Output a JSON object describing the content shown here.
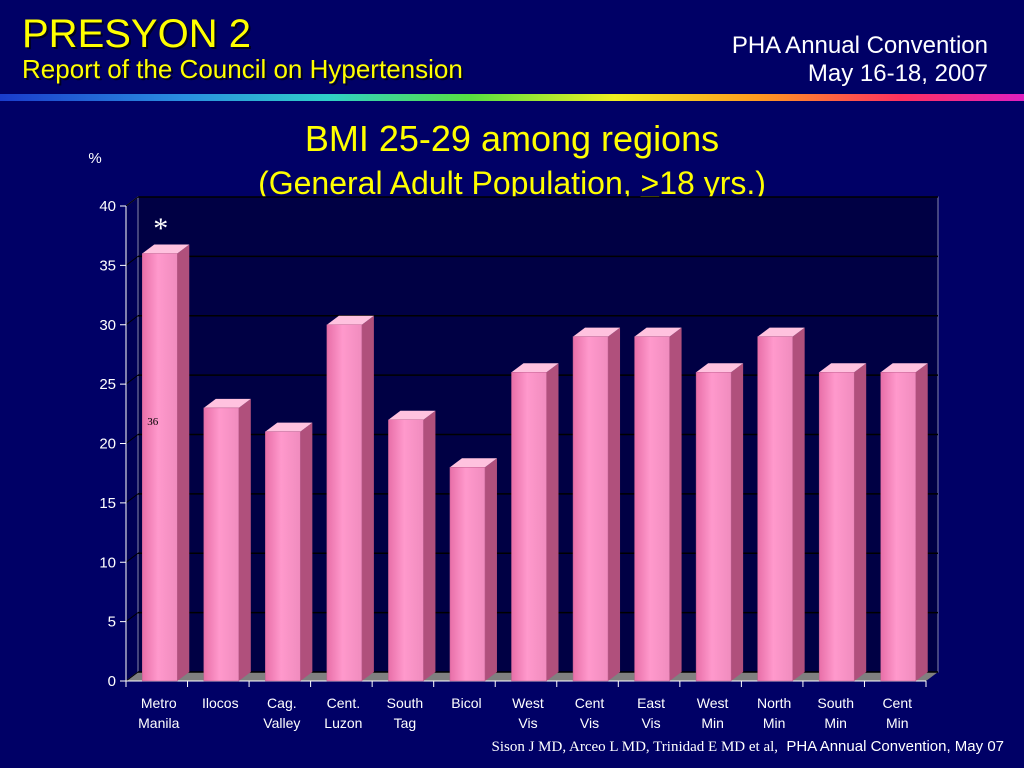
{
  "header": {
    "title": "PRESYON 2",
    "subtitle": "Report of the Council on Hypertension",
    "conference": "PHA Annual Convention",
    "dates": "May 16-18, 2007"
  },
  "chart_data": {
    "type": "bar",
    "title": "BMI 25-29 among regions",
    "subtitle_prefix": "(General Adult Population, ",
    "subtitle_symbol": ">",
    "subtitle_suffix": "18 yrs.)",
    "ylabel": "%",
    "ylim": [
      0,
      40
    ],
    "yticks": [
      0,
      5,
      10,
      15,
      20,
      25,
      30,
      35,
      40
    ],
    "categories": [
      [
        "Metro",
        "Manila"
      ],
      [
        "Ilocos",
        ""
      ],
      [
        "Cag.",
        "Valley"
      ],
      [
        "Cent.",
        "Luzon"
      ],
      [
        "South",
        "Tag"
      ],
      [
        "Bicol",
        ""
      ],
      [
        "West",
        "Vis"
      ],
      [
        "Cent",
        "Vis"
      ],
      [
        "East",
        "Vis"
      ],
      [
        "West",
        "Min"
      ],
      [
        "North",
        "Min"
      ],
      [
        "South",
        "Min"
      ],
      [
        "Cent",
        "Min"
      ]
    ],
    "values": [
      36,
      23,
      21,
      30,
      22,
      18,
      26,
      29,
      29,
      26,
      29,
      26,
      26
    ],
    "data_labels": [
      {
        "index": 0,
        "text": "36"
      }
    ],
    "annotation": {
      "index": 0,
      "text": "*"
    },
    "grid": true,
    "colors": {
      "bar": "#ff99cc",
      "bar_side": "#b0507c",
      "bar_top": "#ffc2df",
      "grid": "#000000",
      "plot_bg": "#000066",
      "wall": "#000044",
      "floor": "#808080"
    }
  },
  "citation": {
    "authors": "Sison J MD, Arceo L MD, Trinidad E MD et al,",
    "source": "PHA Annual Convention, May 07"
  }
}
